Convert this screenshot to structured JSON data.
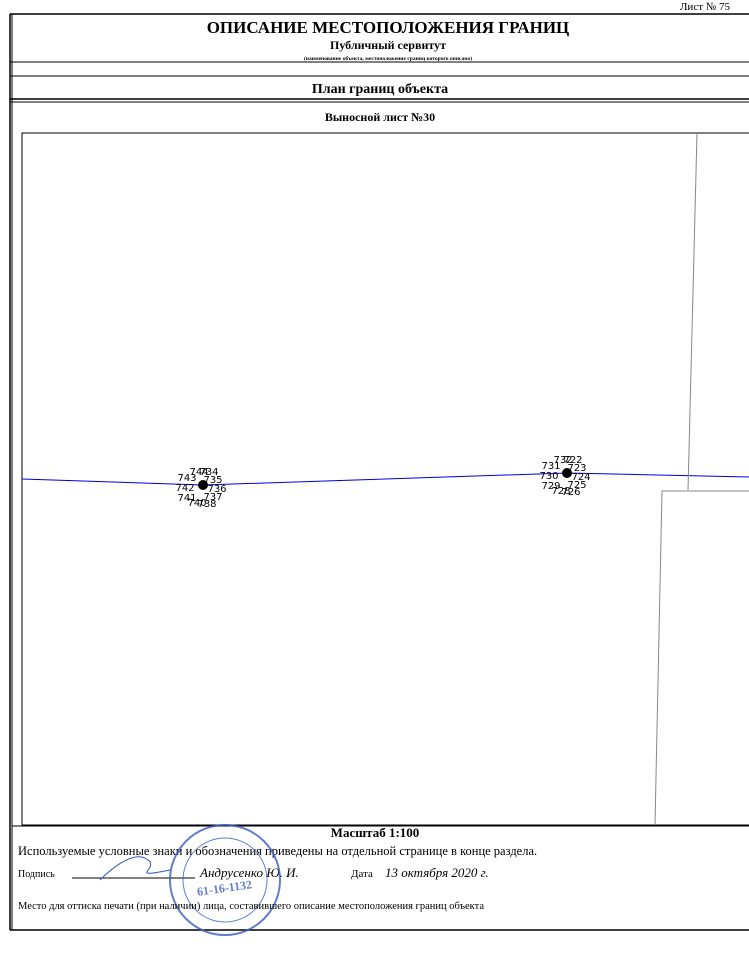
{
  "header": {
    "sheet": "Лист № 75",
    "title": "ОПИСАНИЕ МЕСТОПОЛОЖЕНИЯ ГРАНИЦ",
    "object": "Публичный сервитут",
    "object_caption": "(наименование объекта, местоположение границ которого описано)"
  },
  "plan": {
    "title": "План границ объекта",
    "sheet": "Выносной лист №30",
    "scale": "Масштаб 1:100",
    "clusters": [
      {
        "labels": [
          "744",
          "734",
          "743",
          "735",
          "742",
          "736",
          "741",
          "737",
          "740",
          "738"
        ]
      },
      {
        "labels": [
          "732",
          "722",
          "731",
          "723",
          "730",
          "724",
          "729",
          "725",
          "728",
          "726"
        ]
      }
    ]
  },
  "footer": {
    "legend_note": "Используемые условные знаки и обозначения приведены на отдельной странице в конце раздела.",
    "signature_label": "Подпись",
    "signer": "Андрусенко Ю. И.",
    "date_label": "Дата",
    "date": "13 октября 2020 г.",
    "stamp_note": "Место для оттиска печати (при наличии) лица, составившего описание местоположения границ объекта",
    "stamp_number": "61-16-1132"
  }
}
